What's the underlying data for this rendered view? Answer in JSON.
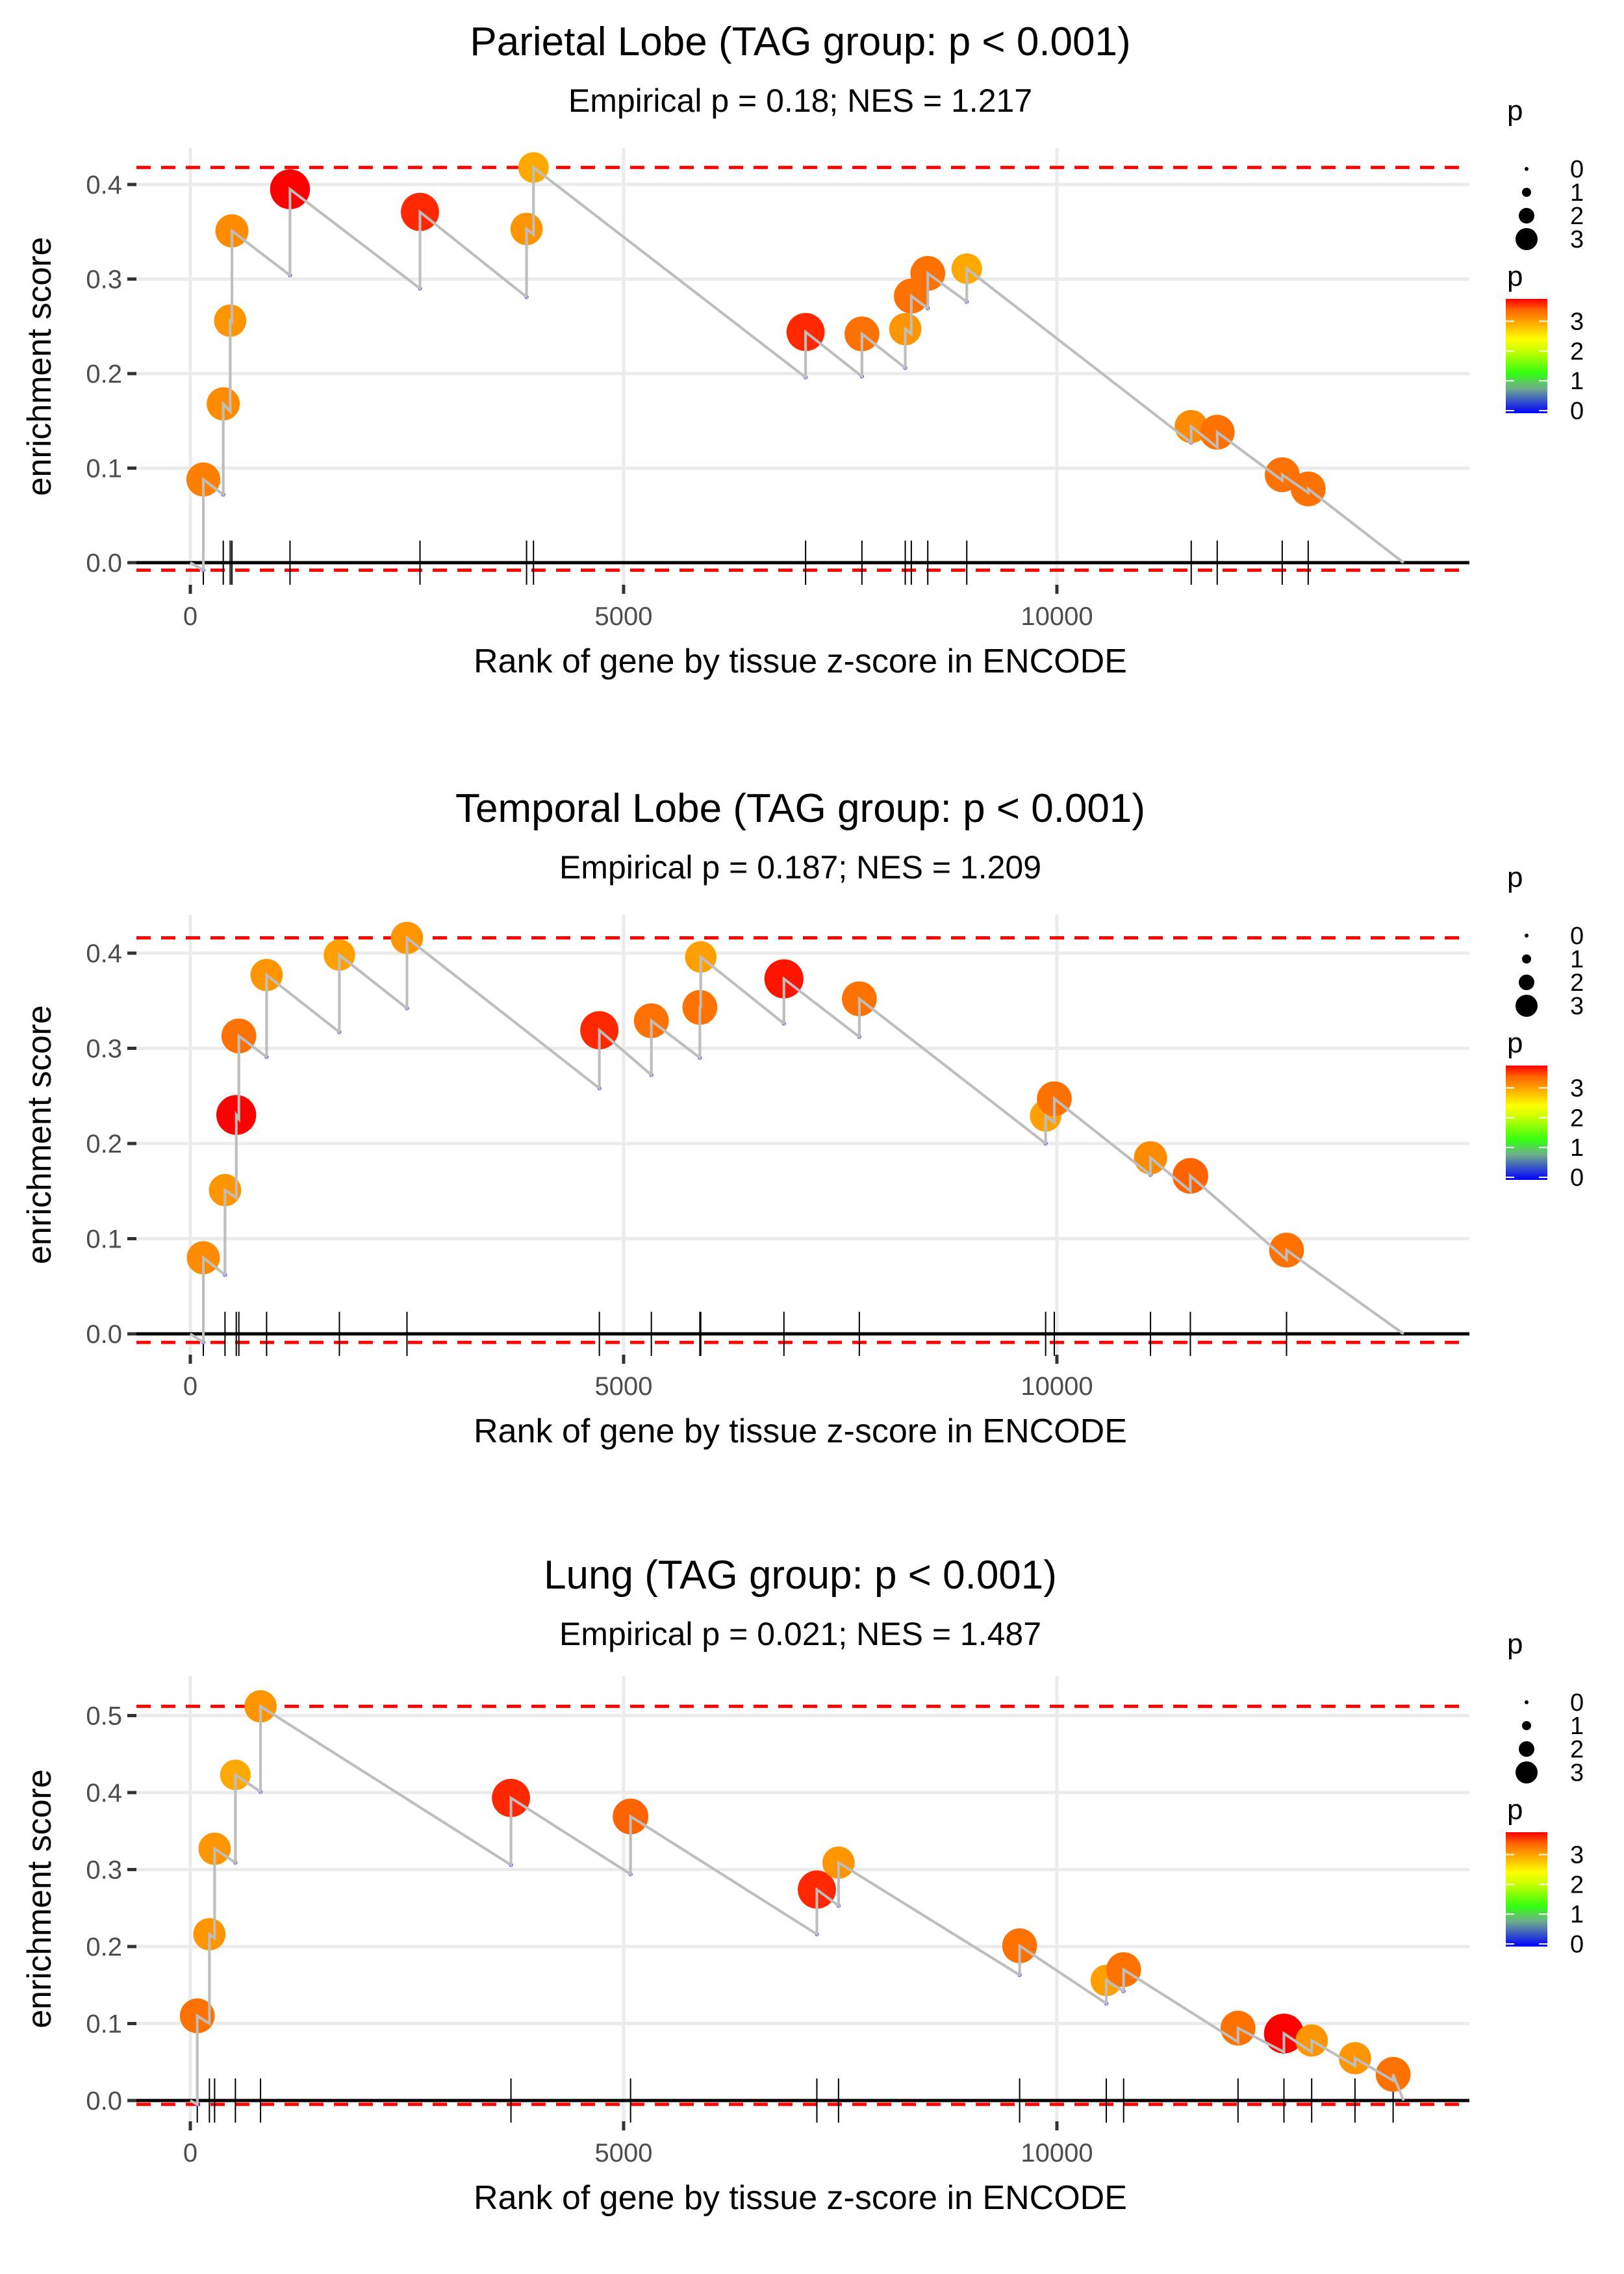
{
  "chart_data": [
    {
      "type": "line",
      "title": "Parietal Lobe (TAG group: p < 0.001)",
      "subtitle": "Empirical p = 0.18; NES = 1.217",
      "xlabel": "Rank of gene by tissue z-score in ENCODE",
      "ylabel": "enrichment score",
      "xlim": [
        -800,
        14700
      ],
      "ylim": [
        -0.015,
        0.43
      ],
      "xticks": [
        0,
        5000,
        10000
      ],
      "xtick_labels": [
        "0",
        "5000",
        "10000"
      ],
      "yticks": [
        0.0,
        0.1,
        0.2,
        0.3,
        0.4
      ],
      "ytick_labels": [
        "0.0",
        "0.1",
        "0.2",
        "0.3",
        "0.4"
      ],
      "max_es": 0.418,
      "min_es": -0.008,
      "end_rank": 14000,
      "hits": [
        {
          "rank": 150,
          "pre": -0.008,
          "es": 0.088,
          "p": 3.1
        },
        {
          "rank": 380,
          "pre": 0.072,
          "es": 0.168,
          "p": 3.0
        },
        {
          "rank": 460,
          "pre": 0.16,
          "es": 0.256,
          "p": 2.9
        },
        {
          "rank": 480,
          "pre": 0.255,
          "es": 0.351,
          "p": 3.0
        },
        {
          "rank": 1150,
          "pre": 0.304,
          "es": 0.395,
          "p": 3.8
        },
        {
          "rank": 2650,
          "pre": 0.29,
          "es": 0.371,
          "p": 3.6
        },
        {
          "rank": 3880,
          "pre": 0.281,
          "es": 0.353,
          "p": 2.9
        },
        {
          "rank": 3960,
          "pre": 0.347,
          "es": 0.418,
          "p": 2.7
        },
        {
          "rank": 7100,
          "pre": 0.196,
          "es": 0.244,
          "p": 3.6
        },
        {
          "rank": 7750,
          "pre": 0.197,
          "es": 0.242,
          "p": 3.2
        },
        {
          "rank": 8250,
          "pre": 0.206,
          "es": 0.247,
          "p": 2.9
        },
        {
          "rank": 8320,
          "pre": 0.242,
          "es": 0.282,
          "p": 3.2
        },
        {
          "rank": 8510,
          "pre": 0.269,
          "es": 0.306,
          "p": 3.2
        },
        {
          "rank": 8960,
          "pre": 0.276,
          "es": 0.311,
          "p": 2.7
        },
        {
          "rank": 11550,
          "pre": 0.127,
          "es": 0.144,
          "p": 3.0
        },
        {
          "rank": 11850,
          "pre": 0.122,
          "es": 0.138,
          "p": 3.2
        },
        {
          "rank": 12600,
          "pre": 0.087,
          "es": 0.093,
          "p": 3.2
        },
        {
          "rank": 12900,
          "pre": 0.074,
          "es": 0.078,
          "p": 3.2
        }
      ]
    },
    {
      "type": "line",
      "title": "Temporal Lobe (TAG group: p < 0.001)",
      "subtitle": "Empirical p = 0.187; NES = 1.209",
      "xlabel": "Rank of gene by tissue z-score in ENCODE",
      "ylabel": "enrichment score",
      "xlim": [
        -800,
        14700
      ],
      "ylim": [
        -0.015,
        0.43
      ],
      "xticks": [
        0,
        5000,
        10000
      ],
      "xtick_labels": [
        "0",
        "5000",
        "10000"
      ],
      "yticks": [
        0.0,
        0.1,
        0.2,
        0.3,
        0.4
      ],
      "ytick_labels": [
        "0.0",
        "0.1",
        "0.2",
        "0.3",
        "0.4"
      ],
      "max_es": 0.416,
      "min_es": -0.009,
      "end_rank": 14000,
      "hits": [
        {
          "rank": 150,
          "pre": -0.009,
          "es": 0.08,
          "p": 3.0
        },
        {
          "rank": 400,
          "pre": 0.062,
          "es": 0.151,
          "p": 2.9
        },
        {
          "rank": 530,
          "pre": 0.143,
          "es": 0.23,
          "p": 3.8
        },
        {
          "rank": 560,
          "pre": 0.226,
          "es": 0.313,
          "p": 3.2
        },
        {
          "rank": 880,
          "pre": 0.291,
          "es": 0.377,
          "p": 2.9
        },
        {
          "rank": 1720,
          "pre": 0.317,
          "es": 0.398,
          "p": 2.8
        },
        {
          "rank": 2500,
          "pre": 0.342,
          "es": 0.416,
          "p": 2.9
        },
        {
          "rank": 4720,
          "pre": 0.258,
          "es": 0.319,
          "p": 3.6
        },
        {
          "rank": 5320,
          "pre": 0.272,
          "es": 0.329,
          "p": 3.2
        },
        {
          "rank": 5880,
          "pre": 0.29,
          "es": 0.343,
          "p": 3.2
        },
        {
          "rank": 5890,
          "pre": 0.343,
          "es": 0.396,
          "p": 2.8
        },
        {
          "rank": 6850,
          "pre": 0.326,
          "es": 0.373,
          "p": 3.7
        },
        {
          "rank": 7720,
          "pre": 0.312,
          "es": 0.352,
          "p": 3.2
        },
        {
          "rank": 9870,
          "pre": 0.2,
          "es": 0.229,
          "p": 2.8
        },
        {
          "rank": 9970,
          "pre": 0.222,
          "es": 0.247,
          "p": 3.2
        },
        {
          "rank": 11080,
          "pre": 0.167,
          "es": 0.185,
          "p": 3.0
        },
        {
          "rank": 11540,
          "pre": 0.15,
          "es": 0.166,
          "p": 3.3
        },
        {
          "rank": 12650,
          "pre": 0.078,
          "es": 0.088,
          "p": 3.2
        }
      ]
    },
    {
      "type": "line",
      "title": "Lung (TAG group: p < 0.001)",
      "subtitle": "Empirical p = 0.021; NES = 1.487",
      "xlabel": "Rank of gene by tissue z-score in ENCODE",
      "ylabel": "enrichment score",
      "xlim": [
        -800,
        14700
      ],
      "ylim": [
        -0.015,
        0.53
      ],
      "xticks": [
        0,
        5000,
        10000
      ],
      "xtick_labels": [
        "0",
        "5000",
        "10000"
      ],
      "yticks": [
        0.0,
        0.1,
        0.2,
        0.3,
        0.4,
        0.5
      ],
      "ytick_labels": [
        "0.0",
        "0.1",
        "0.2",
        "0.3",
        "0.4",
        "0.5"
      ],
      "max_es": 0.512,
      "min_es": -0.005,
      "end_rank": 14000,
      "hits": [
        {
          "rank": 80,
          "pre": -0.005,
          "es": 0.11,
          "p": 3.2
        },
        {
          "rank": 220,
          "pre": 0.1,
          "es": 0.216,
          "p": 2.9
        },
        {
          "rank": 280,
          "pre": 0.211,
          "es": 0.327,
          "p": 2.9
        },
        {
          "rank": 520,
          "pre": 0.309,
          "es": 0.423,
          "p": 2.7
        },
        {
          "rank": 810,
          "pre": 0.401,
          "es": 0.512,
          "p": 2.9
        },
        {
          "rank": 3700,
          "pre": 0.306,
          "es": 0.393,
          "p": 3.6
        },
        {
          "rank": 5080,
          "pre": 0.294,
          "es": 0.369,
          "p": 3.3
        },
        {
          "rank": 7230,
          "pre": 0.216,
          "es": 0.274,
          "p": 3.6
        },
        {
          "rank": 7480,
          "pre": 0.253,
          "es": 0.309,
          "p": 2.9
        },
        {
          "rank": 9570,
          "pre": 0.163,
          "es": 0.201,
          "p": 3.2
        },
        {
          "rank": 10570,
          "pre": 0.126,
          "es": 0.156,
          "p": 2.8
        },
        {
          "rank": 10770,
          "pre": 0.142,
          "es": 0.17,
          "p": 3.2
        },
        {
          "rank": 12090,
          "pre": 0.076,
          "es": 0.094,
          "p": 3.2
        },
        {
          "rank": 12620,
          "pre": 0.063,
          "es": 0.087,
          "p": 3.8
        },
        {
          "rank": 12940,
          "pre": 0.063,
          "es": 0.078,
          "p": 2.9
        },
        {
          "rank": 13440,
          "pre": 0.045,
          "es": 0.055,
          "p": 2.9
        },
        {
          "rank": 13880,
          "pre": 0.026,
          "es": 0.034,
          "p": 3.2
        }
      ]
    }
  ],
  "legend": {
    "size_title": "p",
    "size_labels": [
      "0",
      "1",
      "2",
      "3"
    ],
    "color_title": "p",
    "color_labels": [
      "3",
      "2",
      "1",
      "0"
    ],
    "colors": {
      "max": "#ff0000",
      "mid_high": "#ffa500",
      "mid": "#ffff00",
      "low": "#33ff00",
      "min": "#0000ff"
    }
  },
  "colors": {
    "threshold_line": "#ff0000",
    "es_line": "#bebebe",
    "grid": "#ebebeb",
    "baseline": "#000000"
  }
}
